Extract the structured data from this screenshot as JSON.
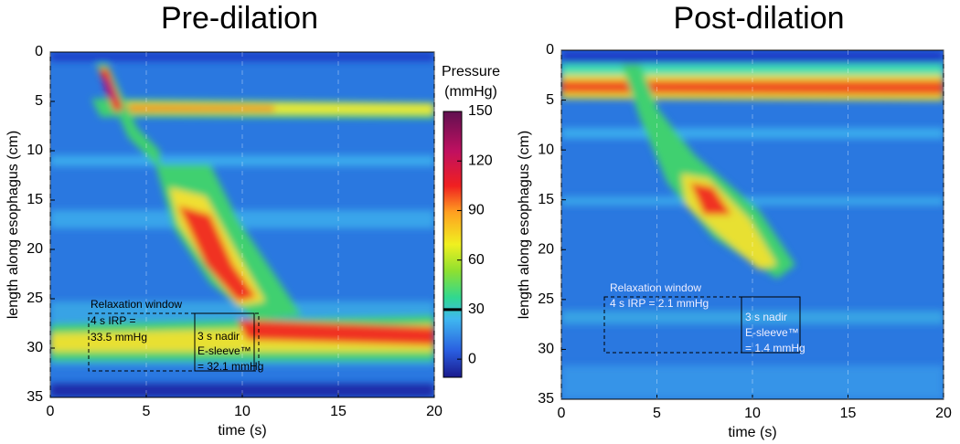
{
  "chart_data": [
    {
      "type": "heatmap",
      "title": "Pre-dilation",
      "xlabel": "time (s)",
      "ylabel": "length along esophagus (cm)",
      "xlim": [
        0,
        20
      ],
      "xticks": [
        0,
        5,
        10,
        15,
        20
      ],
      "ylim": [
        0,
        35
      ],
      "yticks": [
        0,
        5,
        10,
        15,
        20,
        25,
        30,
        35
      ],
      "colorbar": {
        "title": [
          "Pressure",
          "(mmHg)"
        ],
        "lim": [
          -11,
          150
        ],
        "ticks": [
          0,
          30,
          60,
          90,
          120,
          150
        ]
      },
      "annotations": [
        "Relaxation window",
        "4 s IRP =",
        "33.5 mmHg",
        "3 s nadir",
        "E-sleeve™",
        "= 32.1 mmHg"
      ]
    },
    {
      "type": "heatmap",
      "title": "Post-dilation",
      "xlabel": "time (s)",
      "ylabel": "length along esophagus (cm)",
      "xlim": [
        0,
        20
      ],
      "xticks": [
        0,
        5,
        10,
        15,
        20
      ],
      "ylim": [
        0,
        35
      ],
      "yticks": [
        0,
        5,
        10,
        15,
        20,
        25,
        30,
        35
      ],
      "annotations": [
        "Relaxation window",
        "4 s IRP = 2.1 mmHg",
        "3 s nadir",
        "E-sleeve™",
        "= 1.4 mmHg"
      ]
    }
  ]
}
